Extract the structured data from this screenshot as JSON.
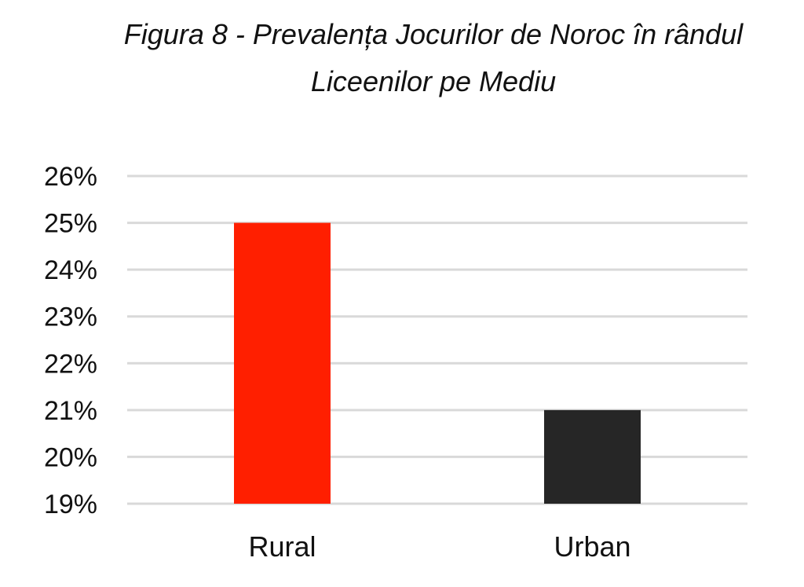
{
  "chart_data": {
    "type": "bar",
    "title_line1": "Figura 8 - Prevalența Jocurilor de Noroc în rândul",
    "title_line2": "Liceenilor pe Mediu",
    "categories": [
      "Rural",
      "Urban"
    ],
    "values": [
      25,
      21
    ],
    "colors": [
      "#ff1f00",
      "#262626"
    ],
    "ylim": [
      19,
      26
    ],
    "yticks": [
      19,
      20,
      21,
      22,
      23,
      24,
      25,
      26
    ],
    "ytick_labels": [
      "19%",
      "20%",
      "21%",
      "22%",
      "23%",
      "24%",
      "25%",
      "26%"
    ],
    "grid": true,
    "gridline_color": "#d9d9d9",
    "xlabel": "",
    "ylabel": ""
  }
}
